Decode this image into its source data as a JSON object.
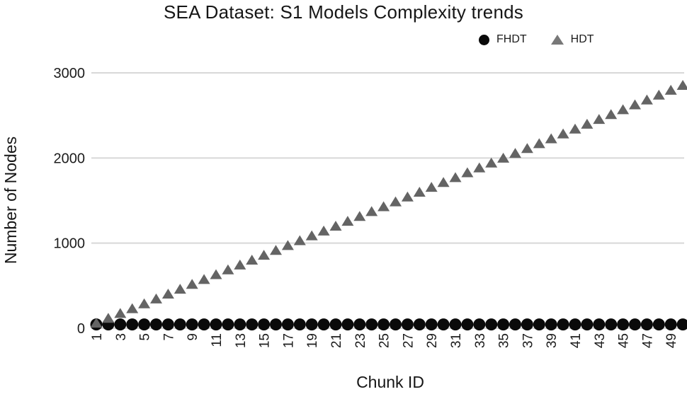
{
  "title": "SEA Dataset: S1 Models Complexity trends",
  "legend": {
    "items": [
      {
        "label": "FHDT",
        "marker": "circle"
      },
      {
        "label": "HDT",
        "marker": "triangle"
      }
    ],
    "position": "top-right"
  },
  "colors": {
    "fhdt": "#0a0a0a",
    "hdt": "#646464",
    "hdt_legend": "#787878",
    "grid": "#d8d8d8",
    "text": "#1c1c1c"
  },
  "chart_data": {
    "type": "scatter",
    "title": "SEA Dataset: S1 Models Complexity trends",
    "xlabel": "Chunk ID",
    "ylabel": "Number of Nodes",
    "ylim": [
      0,
      3000
    ],
    "xlim": [
      1,
      50
    ],
    "y_ticks": [
      0,
      1000,
      2000,
      3000
    ],
    "x_ticks": [
      1,
      3,
      5,
      7,
      9,
      11,
      13,
      15,
      17,
      19,
      21,
      23,
      25,
      27,
      29,
      31,
      33,
      35,
      37,
      39,
      41,
      43,
      45,
      47,
      49
    ],
    "grid": "horizontal",
    "x": [
      1,
      2,
      3,
      4,
      5,
      6,
      7,
      8,
      9,
      10,
      11,
      12,
      13,
      14,
      15,
      16,
      17,
      18,
      19,
      20,
      21,
      22,
      23,
      24,
      25,
      26,
      27,
      28,
      29,
      30,
      31,
      32,
      33,
      34,
      35,
      36,
      37,
      38,
      39,
      40,
      41,
      42,
      43,
      44,
      45,
      46,
      47,
      48,
      49,
      50
    ],
    "series": [
      {
        "name": "FHDT",
        "marker": "circle",
        "values": [
          45,
          45,
          45,
          45,
          45,
          45,
          45,
          45,
          45,
          45,
          45,
          45,
          45,
          45,
          45,
          45,
          45,
          45,
          45,
          45,
          45,
          45,
          45,
          45,
          45,
          45,
          45,
          45,
          45,
          45,
          45,
          45,
          45,
          45,
          45,
          45,
          45,
          45,
          45,
          45,
          45,
          45,
          45,
          45,
          45,
          45,
          45,
          45,
          45,
          45
        ]
      },
      {
        "name": "HDT",
        "marker": "triangle",
        "values": [
          57,
          114,
          171,
          228,
          285,
          342,
          399,
          456,
          513,
          570,
          627,
          684,
          741,
          798,
          855,
          912,
          969,
          1026,
          1083,
          1140,
          1197,
          1254,
          1311,
          1368,
          1425,
          1482,
          1539,
          1596,
          1653,
          1710,
          1767,
          1824,
          1881,
          1938,
          1995,
          2052,
          2109,
          2166,
          2223,
          2280,
          2337,
          2394,
          2451,
          2508,
          2565,
          2622,
          2679,
          2736,
          2793,
          2850
        ]
      }
    ]
  }
}
